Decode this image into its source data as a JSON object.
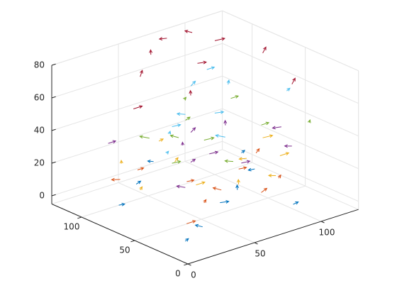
{
  "chart_data": {
    "type": "quiver3",
    "xlim": [
      0,
      128
    ],
    "ylim": [
      0,
      128
    ],
    "zlim": [
      -5,
      80
    ],
    "xticks": [
      0,
      50,
      100
    ],
    "yticks": [
      0,
      50,
      100
    ],
    "zticks": [
      0,
      20,
      40,
      60,
      80
    ],
    "grid": true,
    "series": [
      {
        "color": "#0072BD",
        "x": [
          10,
          35,
          60,
          85,
          110,
          20,
          45,
          70,
          95,
          120
        ],
        "y": [
          15,
          30,
          45,
          60,
          75,
          90,
          105,
          120,
          20,
          100
        ],
        "z": [
          2,
          0,
          4,
          1,
          3,
          0,
          2,
          5,
          1,
          3
        ],
        "u": [
          4,
          -3,
          5,
          3,
          -4,
          2,
          5,
          -2,
          3,
          4
        ],
        "v": [
          2,
          3,
          -2,
          4,
          1,
          -3,
          2,
          3,
          -1,
          2
        ],
        "w": [
          0,
          1,
          0,
          1,
          0,
          1,
          0,
          0,
          1,
          0
        ]
      },
      {
        "color": "#D95319",
        "x": [
          15,
          40,
          65,
          90,
          115,
          25,
          50,
          75,
          100,
          55
        ],
        "y": [
          20,
          35,
          50,
          65,
          80,
          95,
          110,
          25,
          40,
          70
        ],
        "z": [
          10,
          12,
          9,
          11,
          10,
          13,
          8,
          12,
          10,
          11
        ],
        "u": [
          5,
          4,
          -3,
          5,
          4,
          -4,
          3,
          5,
          4,
          3
        ],
        "v": [
          -2,
          3,
          4,
          -1,
          2,
          3,
          -2,
          1,
          3,
          -3
        ],
        "w": [
          1,
          0,
          1,
          0,
          1,
          0,
          1,
          1,
          0,
          1
        ]
      },
      {
        "color": "#EDB120",
        "x": [
          12,
          38,
          62,
          88,
          112,
          30,
          58,
          82,
          105,
          70
        ],
        "y": [
          60,
          40,
          30,
          55,
          70,
          100,
          85,
          20,
          45,
          115
        ],
        "z": [
          20,
          22,
          19,
          21,
          23,
          20,
          18,
          22,
          21,
          19
        ],
        "u": [
          4,
          5,
          3,
          -4,
          5,
          3,
          4,
          -3,
          5,
          4
        ],
        "v": [
          3,
          -2,
          4,
          2,
          -3,
          4,
          2,
          3,
          -2,
          1
        ],
        "w": [
          0,
          1,
          1,
          0,
          1,
          0,
          1,
          0,
          1,
          0
        ]
      },
      {
        "color": "#7E2F8E",
        "x": [
          18,
          42,
          68,
          92,
          118,
          28,
          52,
          78,
          102,
          60
        ],
        "y": [
          25,
          50,
          35,
          80,
          60,
          110,
          70,
          95,
          30,
          55
        ],
        "z": [
          30,
          32,
          29,
          33,
          31,
          30,
          34,
          28,
          32,
          31
        ],
        "u": [
          -4,
          5,
          4,
          3,
          -5,
          4,
          3,
          5,
          -3,
          4
        ],
        "v": [
          3,
          2,
          -3,
          4,
          2,
          -2,
          4,
          2,
          3,
          -3
        ],
        "w": [
          1,
          0,
          1,
          1,
          0,
          1,
          0,
          1,
          0,
          1
        ]
      },
      {
        "color": "#77AC30",
        "x": [
          20,
          45,
          70,
          95,
          115,
          35,
          60,
          85,
          108,
          50
        ],
        "y": [
          40,
          65,
          90,
          50,
          30,
          80,
          60,
          110,
          95,
          20
        ],
        "z": [
          40,
          42,
          39,
          41,
          43,
          40,
          38,
          42,
          41,
          39
        ],
        "u": [
          4,
          -3,
          5,
          4,
          3,
          -4,
          5,
          3,
          4,
          -3
        ],
        "v": [
          -3,
          4,
          2,
          -2,
          3,
          4,
          -3,
          2,
          -2,
          4
        ],
        "w": [
          1,
          1,
          0,
          1,
          0,
          1,
          1,
          0,
          1,
          0
        ]
      },
      {
        "color": "#4DBEEE",
        "x": [
          8,
          32,
          58,
          82,
          110,
          22,
          48,
          72,
          98,
          122
        ],
        "y": [
          30,
          55,
          75,
          100,
          120,
          45,
          25,
          65,
          85,
          60
        ],
        "z": [
          52,
          55,
          50,
          54,
          51,
          56,
          53,
          50,
          55,
          52
        ],
        "u": [
          3,
          4,
          -3,
          5,
          4,
          3,
          -4,
          5,
          3,
          4
        ],
        "v": [
          2,
          -3,
          4,
          2,
          -2,
          3,
          4,
          -2,
          3,
          2
        ],
        "w": [
          0,
          1,
          0,
          1,
          1,
          0,
          1,
          0,
          1,
          0
        ]
      },
      {
        "color": "#A2142F",
        "x": [
          15,
          40,
          60,
          80,
          100,
          120,
          50,
          75,
          95,
          110
        ],
        "y": [
          70,
          95,
          110,
          120,
          100,
          80,
          60,
          85,
          115,
          40
        ],
        "z": [
          66,
          72,
          76,
          78,
          77,
          70,
          68,
          74,
          79,
          65
        ],
        "u": [
          5,
          4,
          3,
          -4,
          5,
          4,
          3,
          5,
          -3,
          4
        ],
        "v": [
          -2,
          3,
          4,
          2,
          -3,
          2,
          4,
          -2,
          3,
          2
        ],
        "w": [
          1,
          2,
          1,
          0,
          1,
          2,
          1,
          0,
          1,
          2
        ]
      }
    ]
  }
}
